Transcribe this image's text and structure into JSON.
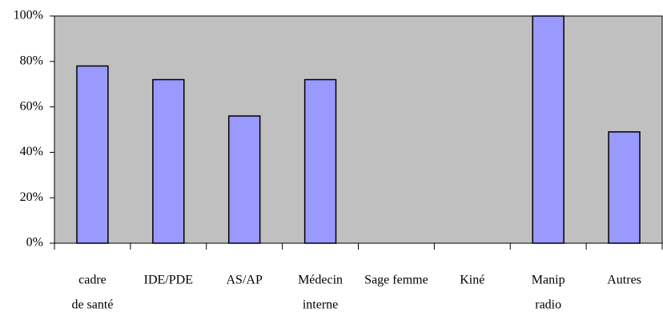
{
  "chart_data": {
    "type": "bar",
    "categories": [
      [
        "cadre",
        "de santé"
      ],
      [
        "IDE/PDE"
      ],
      [
        "AS/AP"
      ],
      [
        "Médecin",
        "interne"
      ],
      [
        "Sage femme"
      ],
      [
        "Kiné"
      ],
      [
        "Manip",
        "radio"
      ],
      [
        "Autres"
      ]
    ],
    "values": [
      78,
      72,
      56,
      72,
      0,
      0,
      100,
      49
    ],
    "color": "#9999ff",
    "ylim": [
      0,
      100
    ],
    "yticks": [
      {
        "value": 0,
        "label": "0%"
      },
      {
        "value": 20,
        "label": "20%"
      },
      {
        "value": 40,
        "label": "40%"
      },
      {
        "value": 60,
        "label": "60%"
      },
      {
        "value": 80,
        "label": "80%"
      },
      {
        "value": 100,
        "label": "100%"
      }
    ],
    "plot_background": "#c0c0c0"
  }
}
